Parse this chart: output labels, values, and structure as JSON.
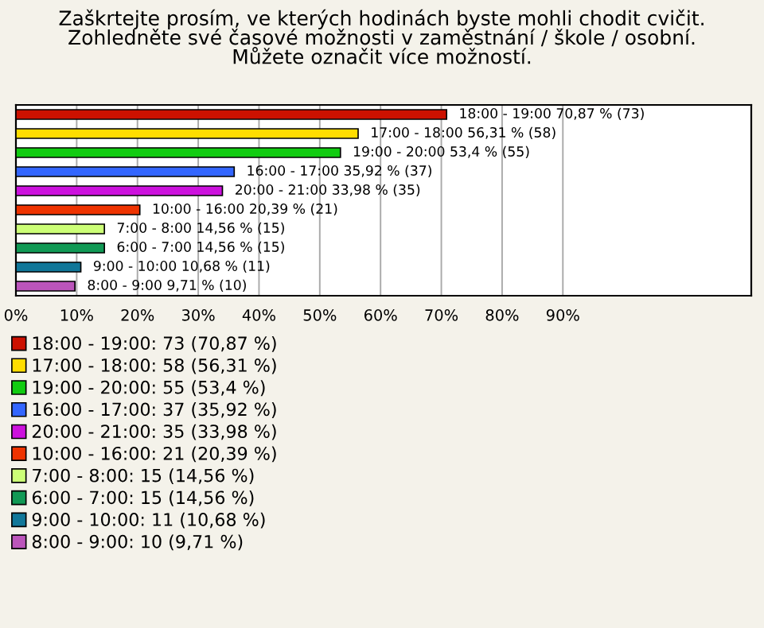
{
  "chart_data": {
    "type": "bar",
    "orientation": "horizontal",
    "title": "Zaškrtejte prosím, ve kterých hodinách byste mohli chodit cvičit.\nZohledněte své časové možnosti v zaměstnání / škole / osobní.\nMůžete označit více možností.",
    "categories": [
      null,
      null,
      null,
      null,
      null,
      null,
      null,
      null,
      null,
      null
    ],
    "series": [
      {
        "name": "18:00 - 19:00: 73 (70,87 %)",
        "color": "#cc1100",
        "values": [
          70.87,
          null,
          null,
          null,
          null,
          null,
          null,
          null,
          null,
          null
        ],
        "value_labels": [
          "18:00 - 19:00 70,87 % (73)",
          null,
          null,
          null,
          null,
          null,
          null,
          null,
          null,
          null
        ]
      },
      {
        "name": "17:00 - 18:00: 58 (56,31 %)",
        "color": "#ffdd00",
        "values": [
          null,
          56.31,
          null,
          null,
          null,
          null,
          null,
          null,
          null,
          null
        ],
        "value_labels": [
          null,
          "17:00 - 18:00 56,31 % (58)",
          null,
          null,
          null,
          null,
          null,
          null,
          null,
          null
        ]
      },
      {
        "name": "19:00 - 20:00: 55 (53,4 %)",
        "color": "#11cc11",
        "values": [
          null,
          null,
          53.4,
          null,
          null,
          null,
          null,
          null,
          null,
          null
        ],
        "value_labels": [
          null,
          null,
          "19:00 - 20:00 53,4 % (55)",
          null,
          null,
          null,
          null,
          null,
          null,
          null
        ]
      },
      {
        "name": "16:00 - 17:00: 37 (35,92 %)",
        "color": "#3366ff",
        "values": [
          null,
          null,
          null,
          35.92,
          null,
          null,
          null,
          null,
          null,
          null
        ],
        "value_labels": [
          null,
          null,
          null,
          "16:00 - 17:00 35,92 % (37)",
          null,
          null,
          null,
          null,
          null,
          null
        ]
      },
      {
        "name": "20:00 - 21:00: 35 (33,98 %)",
        "color": "#cc11dd",
        "values": [
          null,
          null,
          null,
          null,
          33.98,
          null,
          null,
          null,
          null,
          null
        ],
        "value_labels": [
          null,
          null,
          null,
          null,
          "20:00 - 21:00 33,98 % (35)",
          null,
          null,
          null,
          null,
          null
        ]
      },
      {
        "name": "10:00 - 16:00: 21 (20,39 %)",
        "color": "#ee3300",
        "values": [
          null,
          null,
          null,
          null,
          null,
          20.39,
          null,
          null,
          null,
          null
        ],
        "value_labels": [
          null,
          null,
          null,
          null,
          null,
          "10:00 - 16:00 20,39 % (21)",
          null,
          null,
          null,
          null
        ]
      },
      {
        "name": "7:00 - 8:00: 15 (14,56 %)",
        "color": "#ccff77",
        "values": [
          null,
          null,
          null,
          null,
          null,
          null,
          14.56,
          null,
          null,
          null
        ],
        "value_labels": [
          null,
          null,
          null,
          null,
          null,
          null,
          "7:00 - 8:00 14,56 % (15)",
          null,
          null,
          null
        ]
      },
      {
        "name": "6:00 - 7:00: 15 (14,56 %)",
        "color": "#119955",
        "values": [
          null,
          null,
          null,
          null,
          null,
          null,
          null,
          14.56,
          null,
          null
        ],
        "value_labels": [
          null,
          null,
          null,
          null,
          null,
          null,
          null,
          "6:00 - 7:00 14,56 % (15)",
          null,
          null
        ]
      },
      {
        "name": "9:00 - 10:00: 11 (10,68 %)",
        "color": "#117799",
        "values": [
          null,
          null,
          null,
          null,
          null,
          null,
          null,
          null,
          10.68,
          null
        ],
        "value_labels": [
          null,
          null,
          null,
          null,
          null,
          null,
          null,
          null,
          "9:00 - 10:00 10,68 % (11)",
          null
        ]
      },
      {
        "name": "8:00 - 9:00: 10 (9,71 %)",
        "color": "#bb55bb",
        "values": [
          null,
          null,
          null,
          null,
          null,
          null,
          null,
          null,
          null,
          9.71
        ],
        "value_labels": [
          null,
          null,
          null,
          null,
          null,
          null,
          null,
          null,
          null,
          "8:00 - 9:00 9,71 % (10)"
        ]
      }
    ],
    "xlim": [
      0,
      121
    ],
    "xticks": [
      {
        "value": 0,
        "label": "0%"
      },
      {
        "value": 10,
        "label": "10%"
      },
      {
        "value": 20,
        "label": "20%"
      },
      {
        "value": 30,
        "label": "30%"
      },
      {
        "value": 40,
        "label": "40%"
      },
      {
        "value": 50,
        "label": "50%"
      },
      {
        "value": 60,
        "label": "60%"
      },
      {
        "value": 70,
        "label": "70%"
      },
      {
        "value": 80,
        "label": "80%"
      },
      {
        "value": 90,
        "label": "90%"
      }
    ],
    "grid": "x",
    "legend": "bottom",
    "tick_labels": "x"
  }
}
